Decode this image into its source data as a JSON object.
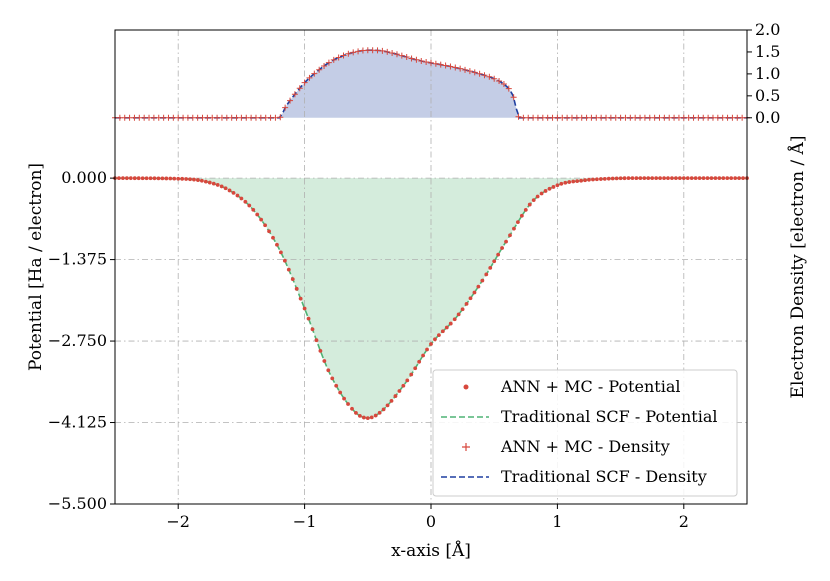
{
  "chart_data": {
    "type": "line",
    "title": "",
    "xlabel": "x-axis [Å]",
    "ylabel_left": "Potential [Ha / electron]",
    "ylabel_right": "Electron Density [electron / Å]",
    "xlim": [
      -2.5,
      2.5
    ],
    "ylim_left": [
      -5.5,
      2.5
    ],
    "ylim_right": [
      -8.8,
      2.0
    ],
    "x_ticks": [
      -2,
      -1,
      0,
      1,
      2
    ],
    "x_tick_labels": [
      "−2",
      "−1",
      "0",
      "1",
      "2"
    ],
    "y_left_ticks": [
      0.0,
      -1.375,
      -2.75,
      -4.125,
      -5.5
    ],
    "y_left_tick_labels": [
      "0.000",
      "−1.375",
      "−2.750",
      "−4.125",
      "−5.500"
    ],
    "y_right_ticks": [
      0.0,
      0.5,
      1.0,
      1.5,
      2.0
    ],
    "y_right_tick_labels": [
      "0.0",
      "0.5",
      "1.0",
      "1.5",
      "2.0"
    ],
    "grid": true,
    "legend_position": "bottom-right",
    "potential": {
      "x": [
        -2.5,
        -2.0,
        -1.8,
        -1.6,
        -1.4,
        -1.2,
        -1.0,
        -0.8,
        -0.6,
        -0.5,
        -0.4,
        -0.2,
        0.0,
        0.2,
        0.4,
        0.6,
        0.8,
        1.0,
        1.2,
        1.4,
        1.6,
        1.8,
        2.0,
        2.5
      ],
      "y": [
        0.0,
        -0.01,
        -0.05,
        -0.2,
        -0.55,
        -1.2,
        -2.2,
        -3.3,
        -3.95,
        -4.05,
        -3.95,
        -3.45,
        -2.8,
        -2.35,
        -1.75,
        -1.05,
        -0.4,
        -0.12,
        -0.04,
        -0.01,
        0.0,
        0.0,
        0.0,
        0.0
      ]
    },
    "density": {
      "x": [
        -2.5,
        -1.2,
        -1.15,
        -1.1,
        -1.0,
        -0.9,
        -0.8,
        -0.7,
        -0.6,
        -0.5,
        -0.4,
        -0.3,
        -0.2,
        -0.1,
        0.0,
        0.1,
        0.2,
        0.3,
        0.4,
        0.5,
        0.6,
        0.65,
        0.7,
        2.5
      ],
      "y": [
        0.0,
        0.0,
        0.25,
        0.45,
        0.8,
        1.06,
        1.27,
        1.41,
        1.5,
        1.54,
        1.53,
        1.47,
        1.39,
        1.31,
        1.25,
        1.2,
        1.14,
        1.07,
        0.99,
        0.89,
        0.71,
        0.5,
        0.0,
        0.0
      ]
    },
    "series": [
      {
        "name": "ANN + MC - Potential",
        "color": "#d7483d",
        "marker": "dot"
      },
      {
        "name": "Traditional SCF - Potential",
        "color": "#4fb375",
        "style": "dashed"
      },
      {
        "name": "ANN + MC - Density",
        "color": "#d7483d",
        "marker": "plus"
      },
      {
        "name": "Traditional SCF - Density",
        "color": "#1f3fa0",
        "style": "dashed"
      }
    ],
    "fill_colors": {
      "potential": "#d4ecdc",
      "density": "#c4cde6"
    }
  }
}
